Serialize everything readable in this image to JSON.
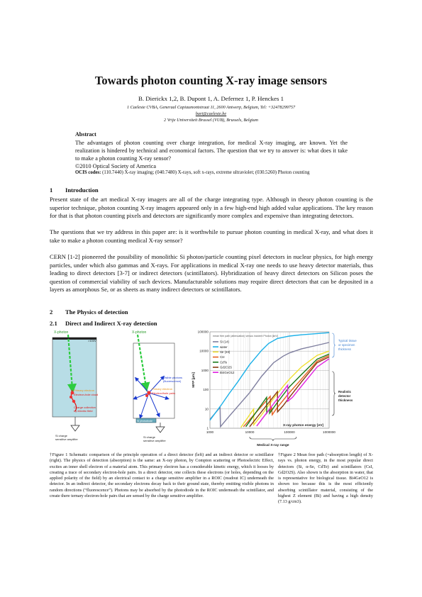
{
  "title": "Towards photon counting X-ray image sensors",
  "authors": "B. Dierickx 1,2, B. Dupont 1, A. Defernez 1, P. Henckes 1",
  "affiliations": [
    "1 Caeleste CVBA, Generaal Capiaumontstraat 11, 2600 Antwerp, Belgium, Tel: +32478299757",
    "bart@caeleste.be",
    "2 Vrije Universiteit Brussel (VUB), Brussels, Belgium"
  ],
  "abstract": {
    "heading": "Abstract",
    "body": "The advantages of photon counting over charge integration, for medical X-ray imaging, are known. Yet the realization is hindered by technical and economical factors. The question that we try to answer is: what does it take to make a photon counting X-ray sensor?",
    "copyright": "©2010 Optical Society of America",
    "ocis_label": "OCIS codes:",
    "ocis_text": "(110.7440) X-ray imaging; (040.7480) X-rays, soft x-rays, extreme ultraviolet; (030.5260) Photon counting"
  },
  "sections": {
    "intro": {
      "number": "1",
      "title": "Introduction"
    },
    "physics": {
      "number": "2",
      "title": "The Physics of detection"
    },
    "direct": {
      "number": "2.1",
      "title": "Direct and Indirect X-ray detection"
    }
  },
  "paragraphs": [
    "Present state of the art medical X-ray imagers are all of the charge integrating type. Although in theory photon counting is the superior technique, photon counting X-ray imagers appeared only in a few high-end high added value applications.  The key reason for that is that photon counting pixels and detectors are significantly more complex and expensive than integrating detectors.",
    "The questions that we try address in this paper are: is it worthwhile to pursue photon counting in medical X-ray, and what does it take to make a photon counting medical X-ray sensor?",
    "CERN [1-2] pioneered the possibility of monolithic Si photon/particle counting pixel detectors in nuclear physics, for high energy particles, under which also gammas and X-rays.  For applications in medical X-ray one needs to use heavy detector materials, thus leading to direct detectors [3-7] or indirect detectors (scintillators).  Hybridization of heavy direct detectors on Silicon poses the question of commercial viability of such devices.  Manufacturable solutions may require direct detectors that can be deposited in a layers as amorphous Se, or as sheets as many indirect detectors or scintillators."
  ],
  "figure1": {
    "xphoton_left": "X-photon",
    "xphoton_right": "X-photon",
    "bias": ">100V",
    "primary_electron": "Primary electron",
    "electron_hole_cloud": "Electron-hole cloud",
    "charge_collection": "Charge collection",
    "by_field": "by electric field",
    "si_charge_left": "Si charge",
    "amp_left": "sensitive amplifier",
    "visible_photons": "Visible photons",
    "fluorescence": "(fluorescence)",
    "electron_hole_pairs": "Electron/hole pairs",
    "si_photodiode": "Si photodiode",
    "si_charge_right": "Si charge",
    "amp_right": "sensitive amplifier"
  },
  "chart_data": {
    "type": "line",
    "title": "mean free path (attenuation) versus incident Photon [keV]",
    "xlabel": "X-ray photon energy [eV]",
    "ylabel": "MFP [µm]",
    "xscale": "log",
    "yscale": "log",
    "xlim": [
      1000,
      1000000
    ],
    "ylim": [
      1,
      100000
    ],
    "x_ticks": [
      "1000",
      "10000",
      "100000",
      "1000000"
    ],
    "y_ticks": [
      "1",
      "10",
      "100",
      "1000",
      "10000",
      "100000"
    ],
    "grid": true,
    "legend_position": "top-left",
    "series": [
      {
        "name": "Si (14)",
        "color": "#7f7f9f",
        "x": [
          1000,
          1800,
          1840,
          3000,
          10000,
          20000,
          40000,
          70000,
          100000,
          200000,
          500000,
          1000000
        ],
        "y": [
          2.9,
          12,
          1.2,
          4,
          70,
          500,
          2500,
          5500,
          8000,
          13000,
          20000,
          28000
        ]
      },
      {
        "name": "water",
        "color": "#1ab0e8",
        "x": [
          1000,
          2000,
          3000,
          5000,
          10000,
          20000,
          30000,
          50000,
          100000,
          200000,
          1000000
        ],
        "y": [
          2.6,
          18,
          60,
          250,
          2000,
          11000,
          25000,
          45000,
          60000,
          70000,
          90000
        ]
      },
      {
        "name": "Se (34)",
        "color": "#f0e030",
        "x": [
          6000,
          12600,
          12700,
          20000,
          40000,
          70000,
          100000,
          200000,
          500000,
          1000000
        ],
        "y": [
          1.1,
          10,
          1.5,
          5,
          35,
          150,
          350,
          1500,
          6000,
          10000
        ]
      },
      {
        "name": "CsI",
        "color": "#e86020",
        "x": [
          7000,
          33000,
          33200,
          36000,
          37000,
          50000,
          100000,
          200000,
          500000,
          1000000
        ],
        "y": [
          1.2,
          45,
          8,
          12,
          5,
          12,
          70,
          350,
          3000,
          6000
        ]
      },
      {
        "name": "CdTe",
        "color": "#1a7a1a",
        "x": [
          8000,
          26700,
          26800,
          31800,
          31900,
          50000,
          100000,
          200000,
          500000,
          1000000
        ],
        "y": [
          1.2,
          40,
          6,
          10,
          6,
          22,
          140,
          600,
          3800,
          7000
        ]
      },
      {
        "name": "Gd2O2S",
        "color": "#8a3a10",
        "x": [
          10000,
          50200,
          50300,
          70000,
          100000,
          200000,
          500000,
          1000000
        ],
        "y": [
          1.2,
          80,
          7,
          15,
          40,
          250,
          2500,
          5000
        ]
      },
      {
        "name": "Bi4GeO12",
        "color": "#e020e0",
        "x": [
          15000,
          90500,
          90600,
          120000,
          200000,
          500000,
          1000000
        ],
        "y": [
          1.3,
          170,
          25,
          40,
          150,
          1500,
          4000
        ]
      }
    ],
    "annotations": [
      "Typical tissue or specimen thickness",
      "Realistic detector thickness",
      "Medical X-ray range"
    ]
  },
  "captions": {
    "fig1": "†Figure 1 Schematic comparison of the principle operation of a direct detector (left) and an indirect detector or scintillator (right).  The physics of detection (absorption) is the same: an X-ray photon, by Compton scattering or Photoelectric Effect, excites an inner shell electron of a material atom. This primary electron has a considerable kinetic energy, which it looses by creating a trace of secondary electron-hole pairs.  In a direct detector, one collects these electrons (or holes, depending on the applied polarity of the field) by an electrical contact to a charge sensitive amplifier in a ROIC (readout IC) underneath the detector.  In an indirect detector, the secondary electrons decay back to their ground state, thereby emitting visible photons in random directions (“fluorescence”).  Photons may be absorbed by the photodiode in the ROIC underneath the scintillator, and create there ternary electron-hole pairs that are sensed by the charge sensitive amplifier.",
    "fig2": "†Figure 2 Mean free path (=absorption length) of X-rays vs. photon energy, in the most popular direct detectors (Si, α-Se, CdTe) and scintillators (CsI, Gd2O2S). Also shown is the absorption in water, that is representative for biological tissue. Bi4GeO12 is shown too because this is the most efficiently absorbing scintillator material, consisting of the highest Z element (Bi) and having a high density (7.13 g/cm3)."
  }
}
